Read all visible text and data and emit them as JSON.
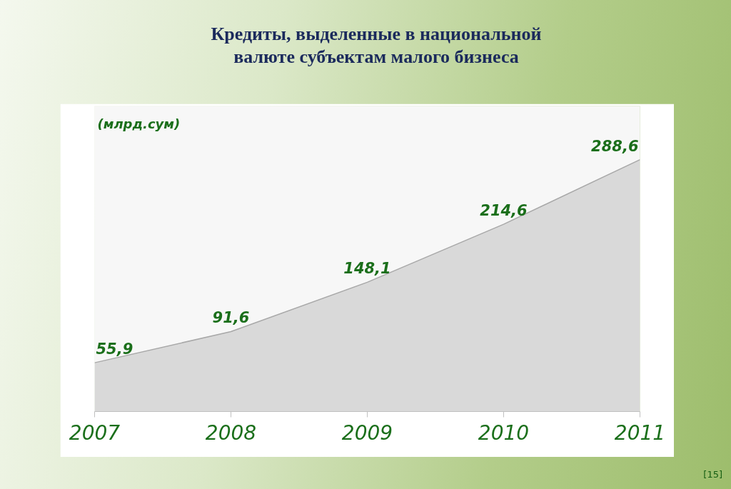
{
  "chart_data": {
    "type": "area",
    "title": "Кредиты, выделенные в национальной валюте субъектам малого бизнеса",
    "ylabel": "(млрд.сум)",
    "categories": [
      "2007",
      "2008",
      "2009",
      "2010",
      "2011"
    ],
    "values": [
      55.9,
      91.6,
      148.1,
      214.6,
      288.6
    ],
    "value_labels": [
      "55,9",
      "91,6",
      "148,1",
      "214,6",
      "288,6"
    ],
    "color": "#d9d9d9",
    "ylim": [
      0,
      350
    ],
    "tick_labels": "x",
    "annotations": [
      "[15]"
    ]
  }
}
